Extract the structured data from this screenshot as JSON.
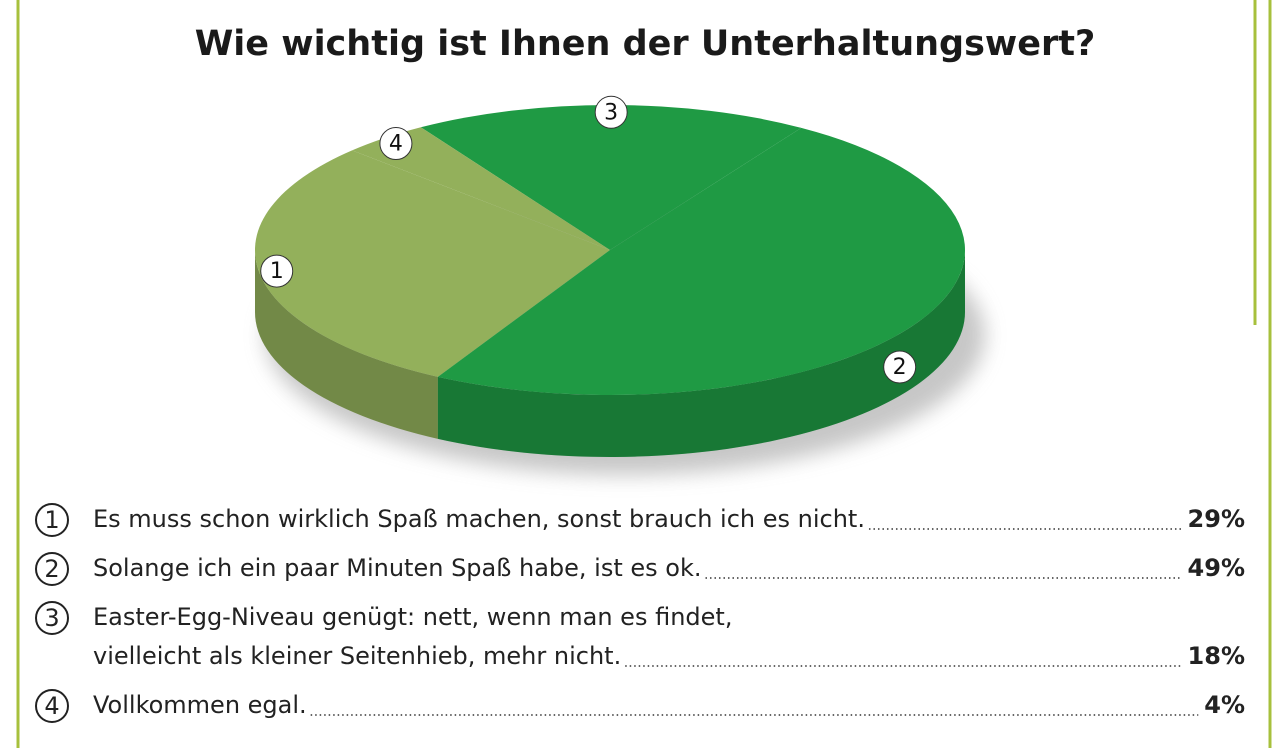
{
  "chart_data": {
    "type": "pie3d",
    "title": "Wie wichtig ist Ihnen der Unterhaltungswert?",
    "labels": [
      "1",
      "2",
      "3",
      "4"
    ],
    "legend": [
      [
        "Es muss schon wirklich Spaß machen, sonst brauch ich es nicht."
      ],
      [
        "Solange ich ein paar Minuten Spaß habe, ist es ok."
      ],
      [
        "Easter-Egg-Niveau genügt: nett, wenn man es findet,",
        "vielleicht als kleiner Seitenhieb, mehr nicht."
      ],
      [
        "Vollkommen egal."
      ]
    ],
    "values": [
      29,
      49,
      18,
      4
    ],
    "value_labels": [
      "29%",
      "49%",
      "18%",
      "4%"
    ],
    "colors": [
      "#93b05b",
      "#1f9a44",
      "#1f9a44",
      "#93b05b"
    ]
  }
}
